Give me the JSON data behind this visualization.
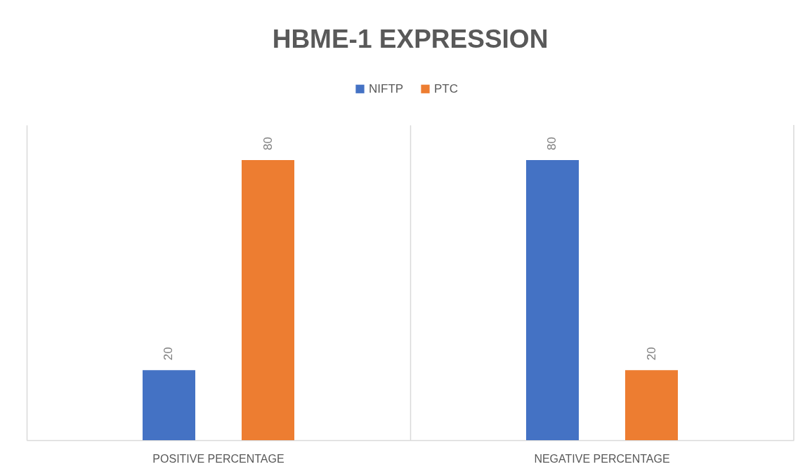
{
  "chart_data": {
    "type": "bar",
    "title": "HBME-1 EXPRESSION",
    "categories": [
      "POSITIVE PERCENTAGE",
      "NEGATIVE PERCENTAGE"
    ],
    "series": [
      {
        "name": "NIFTP",
        "color": "#4472c4",
        "values": [
          20,
          80
        ]
      },
      {
        "name": "PTC",
        "color": "#ed7d31",
        "values": [
          80,
          20
        ]
      }
    ],
    "ylim": [
      0,
      90
    ],
    "data_labels": true,
    "grid": "x",
    "legend": "top",
    "tick_labels": "x"
  }
}
